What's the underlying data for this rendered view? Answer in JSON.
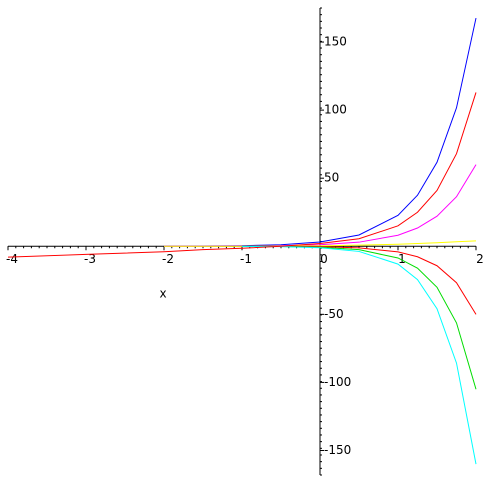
{
  "chart_data": {
    "type": "line",
    "x_label": "x",
    "x": [
      -4,
      -3,
      -2,
      -1.5,
      -1,
      -0.5,
      0,
      0.5,
      1,
      1.25,
      1.5,
      1.75,
      2
    ],
    "series": [
      {
        "color": "#0000ff",
        "values": [
          null,
          null,
          0.06,
          0.15,
          0.4,
          1.1,
          3.1,
          8.3,
          22.7,
          37.5,
          61.7,
          101.7,
          167.6
        ]
      },
      {
        "color": "#ff00ff",
        "values": [
          null,
          null,
          0,
          0.05,
          0.15,
          0.4,
          1.1,
          3,
          8.1,
          13.4,
          22.1,
          36.4,
          60
        ]
      },
      {
        "color": "#ffff00",
        "values": [
          null,
          null,
          0,
          0.02,
          0.05,
          0.15,
          0.3,
          0.8,
          1.5,
          2,
          2.6,
          3.3,
          4
        ]
      },
      {
        "color": "#ff0000",
        "values": [
          null,
          null,
          null,
          null,
          -0.03,
          -0.1,
          -0.3,
          -1.2,
          -4.1,
          -7.7,
          -14.3,
          -26.8,
          -50
        ]
      },
      {
        "color": "#00dd00",
        "values": [
          null,
          null,
          null,
          null,
          -0.06,
          -0.2,
          -0.7,
          -2.5,
          -8.6,
          -16.1,
          -30.1,
          -56.3,
          -105
        ]
      },
      {
        "color": "#00ffff",
        "values": [
          null,
          null,
          null,
          null,
          -0.09,
          -0.3,
          -1.1,
          -3.8,
          -13.1,
          -24.5,
          -45.9,
          -85.8,
          -160
        ]
      },
      {
        "color": "#ff0000",
        "values": [
          -8,
          -6,
          -4,
          -2.5,
          -1.5,
          0,
          2,
          5.5,
          15,
          25,
          41,
          68,
          113
        ]
      }
    ],
    "xlim": [
      -4,
      2
    ],
    "xticks": [
      -4,
      -3,
      -2,
      -1,
      0,
      1,
      2
    ],
    "ylim": [
      -168,
      175
    ],
    "yticks": [
      -150,
      -100,
      -50,
      50,
      100,
      150
    ]
  }
}
